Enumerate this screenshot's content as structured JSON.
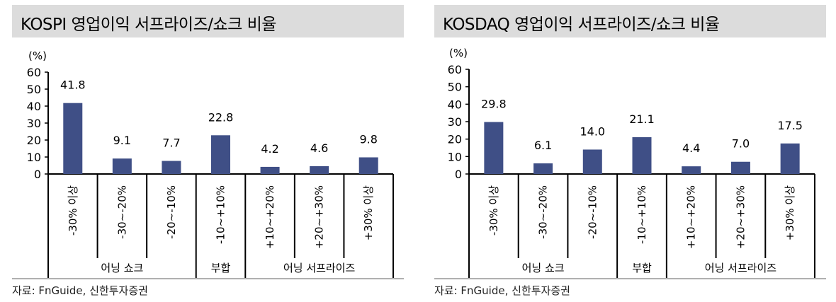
{
  "chart_data": [
    {
      "type": "bar",
      "title": "KOSPI 영업이익 서프라이즈/쇼크 비율",
      "ylabel": "(%)",
      "ylim": [
        0,
        60
      ],
      "yticks": [
        0,
        10,
        20,
        30,
        40,
        50,
        60
      ],
      "categories": [
        "-30% 이상",
        "-30~-20%",
        "-20~-10%",
        "-10~+10%",
        "+10~+20%",
        "+20~+30%",
        "+30% 이상"
      ],
      "values": [
        41.8,
        9.1,
        7.7,
        22.8,
        4.2,
        4.6,
        9.8
      ],
      "labels": [
        "41.8",
        "9.1",
        "7.7",
        "22.8",
        "4.2",
        "4.6",
        "9.8"
      ],
      "groups": [
        {
          "label": "어닝 쇼크",
          "span": 3
        },
        {
          "label": "부합",
          "span": 1
        },
        {
          "label": "어닝 서프라이즈",
          "span": 3
        }
      ],
      "bar_color": "#3f4f86",
      "source": "자료: FnGuide, 신한투자증권"
    },
    {
      "type": "bar",
      "title": "KOSDAQ 영업이익 서프라이즈/쇼크 비율",
      "ylabel": "(%)",
      "ylim": [
        0,
        60
      ],
      "yticks": [
        0,
        10,
        20,
        30,
        40,
        50,
        60
      ],
      "categories": [
        "-30% 이상",
        "-30~-20%",
        "-20~-10%",
        "-10~+10%",
        "+10~+20%",
        "+20~+30%",
        "+30% 이상"
      ],
      "values": [
        29.8,
        6.1,
        14.0,
        21.1,
        4.4,
        7.0,
        17.5
      ],
      "labels": [
        "29.8",
        "6.1",
        "14.0",
        "21.1",
        "4.4",
        "7.0",
        "17.5"
      ],
      "groups": [
        {
          "label": "어닝 쇼크",
          "span": 3
        },
        {
          "label": "부합",
          "span": 1
        },
        {
          "label": "어닝 서프라이즈",
          "span": 3
        }
      ],
      "bar_color": "#3f4f86",
      "source": "자료: FnGuide, 신한투자증권"
    }
  ]
}
